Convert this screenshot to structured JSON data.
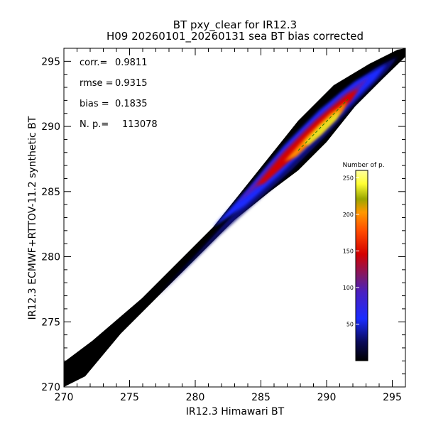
{
  "chart_data": {
    "type": "heatmap",
    "title": "BT pxy_clear for IR12.3",
    "subtitle": "H09 20260101_20260131 sea BT bias corrected",
    "xlabel": "IR12.3 Himawari BT",
    "ylabel": "IR12.3 ECMWF+RTTOV-11.2 synthetic BT",
    "xlim": [
      270,
      296
    ],
    "ylim": [
      270,
      296
    ],
    "xticks": [
      270,
      275,
      280,
      285,
      290,
      295
    ],
    "yticks": [
      270,
      275,
      280,
      285,
      290,
      295
    ],
    "stats": [
      {
        "label": "corr.=",
        "value": "0.9811"
      },
      {
        "label": "rmse =",
        "value": "0.9315"
      },
      {
        "label": "bias =",
        "value": "0.1835"
      },
      {
        "label": "N. p.=",
        "value": "113078"
      }
    ],
    "colorbar": {
      "title": "Number of p.",
      "range": [
        0,
        260
      ],
      "ticks": [
        50,
        100,
        150,
        200,
        250
      ]
    },
    "density_ridge": [
      {
        "x": 270,
        "y": 270.3,
        "count": 2
      },
      {
        "x": 275,
        "y": 275.3,
        "count": 5
      },
      {
        "x": 280,
        "y": 280.2,
        "count": 15
      },
      {
        "x": 285,
        "y": 285.2,
        "count": 80
      },
      {
        "x": 288,
        "y": 288.3,
        "count": 180
      },
      {
        "x": 290,
        "y": 290.3,
        "count": 250
      },
      {
        "x": 292,
        "y": 292.3,
        "count": 170
      },
      {
        "x": 294,
        "y": 294.2,
        "count": 40
      },
      {
        "x": 296,
        "y": 295.8,
        "count": 5
      }
    ],
    "colors": {
      "background": "#ffffff",
      "low": "#000000",
      "mid_low": "#1a2cff",
      "mid": "#d40000",
      "mid_high": "#ff8c00",
      "high": "#ffff66"
    }
  }
}
